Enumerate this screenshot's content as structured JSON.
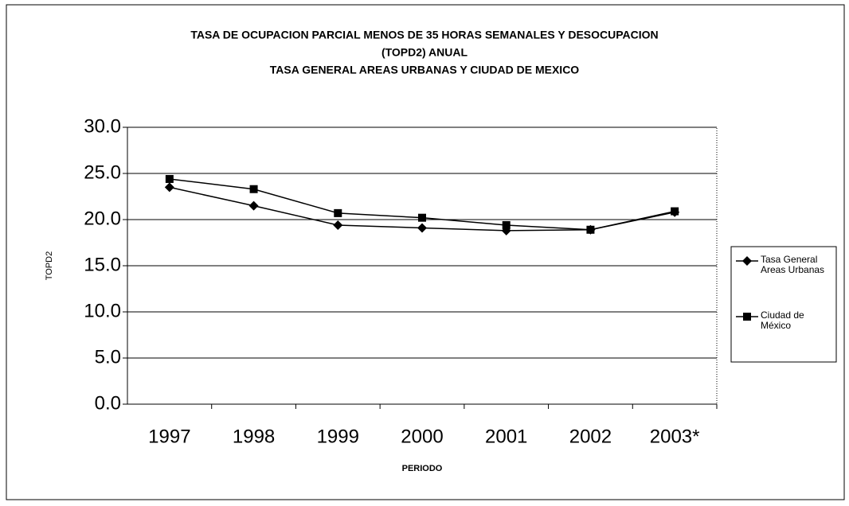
{
  "chart_data": {
    "type": "line",
    "title": [
      "TASA DE OCUPACION PARCIAL MENOS DE 35 HORAS SEMANALES Y DESOCUPACION",
      "(TOPD2) ANUAL",
      "TASA GENERAL AREAS URBANAS Y CIUDAD DE MEXICO"
    ],
    "x_label": "PERIODO",
    "y_label": "TOPD2",
    "categories": [
      "1997",
      "1998",
      "1999",
      "2000",
      "2001",
      "2002",
      "2003*"
    ],
    "series": [
      {
        "name": "Tasa General Areas Urbanas",
        "color": "#000000",
        "marker": "diamond",
        "values": [
          23.5,
          21.5,
          19.4,
          19.1,
          18.8,
          18.9,
          20.8
        ]
      },
      {
        "name": "Ciudad de México",
        "color": "#000000",
        "marker": "square",
        "values": [
          24.4,
          23.3,
          20.7,
          20.2,
          19.4,
          18.9,
          20.9
        ]
      }
    ],
    "ylim": [
      0,
      30
    ],
    "yticks": [
      {
        "value": 0,
        "label": "0.0"
      },
      {
        "value": 5,
        "label": "5.0"
      },
      {
        "value": 10,
        "label": "10.0"
      },
      {
        "value": 15,
        "label": "15.0"
      },
      {
        "value": 20,
        "label": "20.0"
      },
      {
        "value": 25,
        "label": "25.0"
      },
      {
        "value": 30,
        "label": "30.0"
      }
    ],
    "grid": true,
    "legend": "right"
  }
}
